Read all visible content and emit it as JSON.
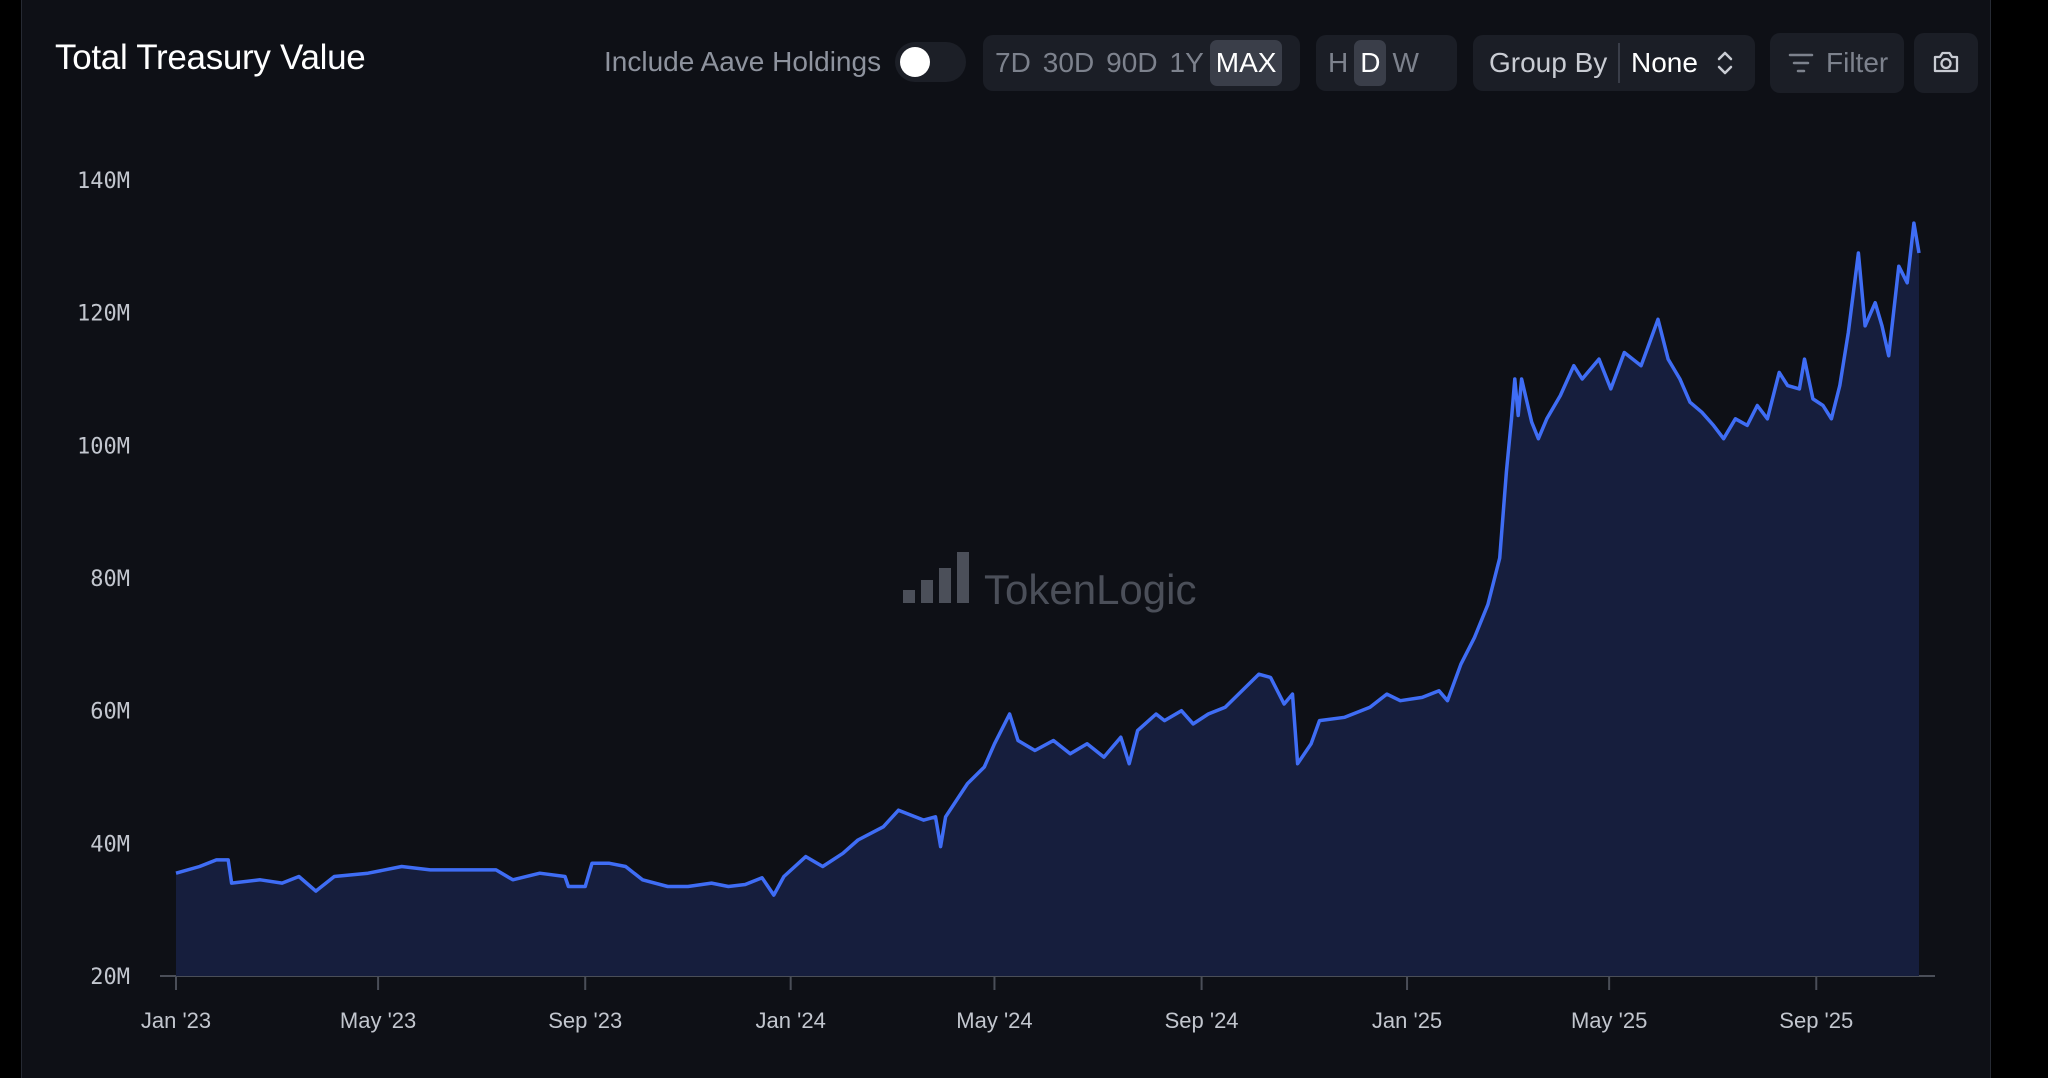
{
  "header": {
    "title": "Total Treasury Value",
    "toggle_label": "Include Aave Holdings",
    "toggle_on": false,
    "ranges": [
      "7D",
      "30D",
      "90D",
      "1Y",
      "MAX"
    ],
    "range_active": "MAX",
    "intervals": [
      "H",
      "D",
      "W"
    ],
    "interval_active": "D",
    "group_by_label": "Group By",
    "group_by_value": "None",
    "filter_label": "Filter"
  },
  "watermark": "TokenLogic",
  "colors": {
    "line": "#3f6df5",
    "area": "#161e3d",
    "background": "#0e1016"
  },
  "chart_data": {
    "type": "area",
    "title": "Total Treasury Value",
    "xlabel": "",
    "ylabel": "",
    "ylim": [
      20,
      140
    ],
    "y_unit": "M",
    "yticks": [
      "20M",
      "40M",
      "60M",
      "80M",
      "100M",
      "120M",
      "140M"
    ],
    "xticks": [
      "Jan '23",
      "May '23",
      "Sep '23",
      "Jan '24",
      "May '24",
      "Sep '24",
      "Jan '25",
      "May '25",
      "Sep '25"
    ],
    "grid": false,
    "series": [
      {
        "values": [
          [
            "2023-01-01",
            35.5
          ],
          [
            "2023-01-15",
            36.5
          ],
          [
            "2023-01-25",
            37.5
          ],
          [
            "2023-02-01",
            37.5
          ],
          [
            "2023-02-03",
            34.0
          ],
          [
            "2023-02-20",
            34.5
          ],
          [
            "2023-03-05",
            34.0
          ],
          [
            "2023-03-15",
            35.0
          ],
          [
            "2023-03-25",
            32.8
          ],
          [
            "2023-04-05",
            35.0
          ],
          [
            "2023-04-25",
            35.5
          ],
          [
            "2023-05-15",
            36.5
          ],
          [
            "2023-06-01",
            36.0
          ],
          [
            "2023-06-20",
            36.0
          ],
          [
            "2023-07-10",
            36.0
          ],
          [
            "2023-07-20",
            34.5
          ],
          [
            "2023-08-05",
            35.5
          ],
          [
            "2023-08-20",
            35.0
          ],
          [
            "2023-08-22",
            33.5
          ],
          [
            "2023-09-01",
            33.5
          ],
          [
            "2023-09-05",
            37.0
          ],
          [
            "2023-09-15",
            37.0
          ],
          [
            "2023-09-25",
            36.5
          ],
          [
            "2023-10-05",
            34.5
          ],
          [
            "2023-10-20",
            33.5
          ],
          [
            "2023-11-01",
            33.5
          ],
          [
            "2023-11-15",
            34.0
          ],
          [
            "2023-11-25",
            33.5
          ],
          [
            "2023-12-05",
            33.8
          ],
          [
            "2023-12-15",
            34.8
          ],
          [
            "2023-12-22",
            32.2
          ],
          [
            "2023-12-28",
            35.0
          ],
          [
            "2024-01-10",
            38.0
          ],
          [
            "2024-01-20",
            36.5
          ],
          [
            "2024-02-01",
            38.5
          ],
          [
            "2024-02-10",
            40.5
          ],
          [
            "2024-02-25",
            42.5
          ],
          [
            "2024-03-05",
            45.0
          ],
          [
            "2024-03-20",
            43.5
          ],
          [
            "2024-03-27",
            44.0
          ],
          [
            "2024-03-30",
            39.5
          ],
          [
            "2024-04-02",
            44.0
          ],
          [
            "2024-04-15",
            49.0
          ],
          [
            "2024-04-25",
            51.5
          ],
          [
            "2024-05-01",
            55.0
          ],
          [
            "2024-05-10",
            59.5
          ],
          [
            "2024-05-15",
            55.5
          ],
          [
            "2024-05-25",
            54.0
          ],
          [
            "2024-06-05",
            55.5
          ],
          [
            "2024-06-15",
            53.5
          ],
          [
            "2024-06-25",
            55.0
          ],
          [
            "2024-07-05",
            53.0
          ],
          [
            "2024-07-15",
            56.0
          ],
          [
            "2024-07-20",
            52.0
          ],
          [
            "2024-07-25",
            57.0
          ],
          [
            "2024-08-05",
            59.5
          ],
          [
            "2024-08-10",
            58.5
          ],
          [
            "2024-08-20",
            60.0
          ],
          [
            "2024-08-27",
            58.0
          ],
          [
            "2024-09-05",
            59.5
          ],
          [
            "2024-09-15",
            60.5
          ],
          [
            "2024-09-25",
            63.0
          ],
          [
            "2024-10-05",
            65.5
          ],
          [
            "2024-10-12",
            65.0
          ],
          [
            "2024-10-20",
            61.0
          ],
          [
            "2024-10-25",
            62.5
          ],
          [
            "2024-10-28",
            52.0
          ],
          [
            "2024-11-05",
            55.0
          ],
          [
            "2024-11-10",
            58.5
          ],
          [
            "2024-11-25",
            59.0
          ],
          [
            "2024-12-10",
            60.5
          ],
          [
            "2024-12-20",
            62.5
          ],
          [
            "2024-12-28",
            61.5
          ],
          [
            "2025-01-10",
            62.0
          ],
          [
            "2025-01-20",
            63.0
          ],
          [
            "2025-01-25",
            61.5
          ],
          [
            "2025-02-02",
            67.0
          ],
          [
            "2025-02-10",
            71.0
          ],
          [
            "2025-02-18",
            76.0
          ],
          [
            "2025-02-25",
            83.0
          ],
          [
            "2025-03-01",
            96.0
          ],
          [
            "2025-03-04",
            104.0
          ],
          [
            "2025-03-06",
            110.0
          ],
          [
            "2025-03-08",
            104.5
          ],
          [
            "2025-03-10",
            110.0
          ],
          [
            "2025-03-16",
            103.5
          ],
          [
            "2025-03-20",
            101.0
          ],
          [
            "2025-03-25",
            104.0
          ],
          [
            "2025-04-02",
            107.5
          ],
          [
            "2025-04-10",
            112.0
          ],
          [
            "2025-04-15",
            110.0
          ],
          [
            "2025-04-25",
            113.0
          ],
          [
            "2025-05-02",
            108.5
          ],
          [
            "2025-05-10",
            114.0
          ],
          [
            "2025-05-20",
            112.0
          ],
          [
            "2025-05-25",
            115.5
          ],
          [
            "2025-05-30",
            119.0
          ],
          [
            "2025-06-05",
            113.0
          ],
          [
            "2025-06-12",
            110.0
          ],
          [
            "2025-06-18",
            106.5
          ],
          [
            "2025-06-25",
            105.0
          ],
          [
            "2025-07-02",
            103.0
          ],
          [
            "2025-07-08",
            101.0
          ],
          [
            "2025-07-15",
            104.0
          ],
          [
            "2025-07-22",
            103.0
          ],
          [
            "2025-07-28",
            106.0
          ],
          [
            "2025-08-03",
            104.0
          ],
          [
            "2025-08-10",
            111.0
          ],
          [
            "2025-08-15",
            109.0
          ],
          [
            "2025-08-22",
            108.5
          ],
          [
            "2025-08-25",
            113.0
          ],
          [
            "2025-08-30",
            107.0
          ],
          [
            "2025-09-05",
            106.0
          ],
          [
            "2025-09-10",
            104.0
          ],
          [
            "2025-09-15",
            109.0
          ],
          [
            "2025-09-20",
            117.0
          ],
          [
            "2025-09-26",
            129.0
          ],
          [
            "2025-09-30",
            118.0
          ],
          [
            "2025-10-06",
            121.5
          ],
          [
            "2025-10-10",
            118.0
          ],
          [
            "2025-10-14",
            113.5
          ],
          [
            "2025-10-20",
            127.0
          ],
          [
            "2025-10-25",
            124.5
          ],
          [
            "2025-10-29",
            133.5
          ],
          [
            "2025-11-01",
            129.0
          ]
        ]
      }
    ]
  }
}
